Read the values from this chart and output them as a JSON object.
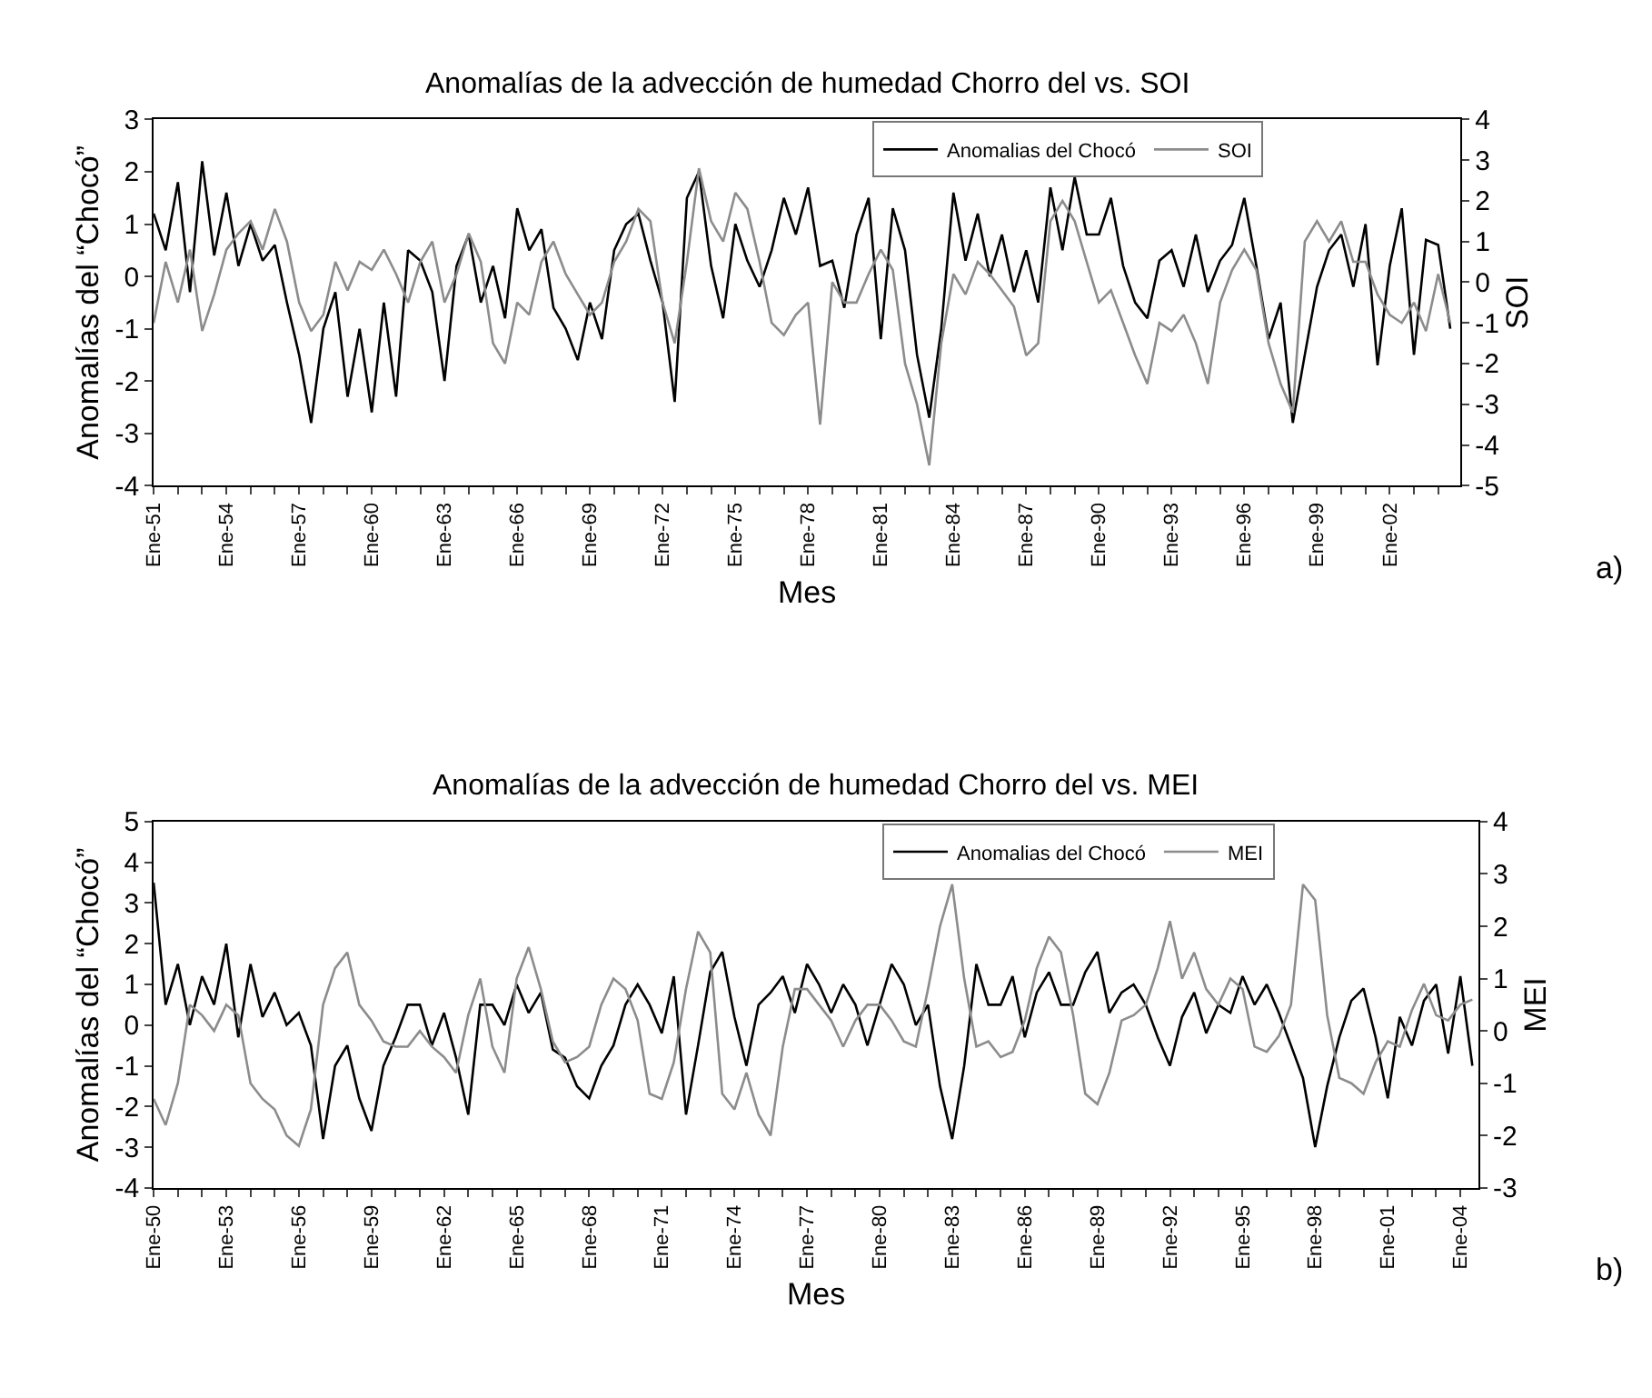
{
  "chart_data": [
    {
      "type": "line",
      "title": "Anomalías de la advección de humedad Chorro del vs. SOI",
      "xlabel": "Mes",
      "ylabel": "Anomalías del “Chocó”",
      "y2label": "SOI",
      "annotations": [
        "a)"
      ],
      "legend": "top right",
      "marker": "none",
      "line_style": "solid",
      "xlim": [
        "1951-01",
        "2004-12"
      ],
      "x": [
        "1951-01",
        "1951-07",
        "1952-01",
        "1952-07",
        "1953-01",
        "1953-07",
        "1954-01",
        "1954-07",
        "1955-01",
        "1955-07",
        "1956-01",
        "1956-07",
        "1957-01",
        "1957-07",
        "1958-01",
        "1958-07",
        "1959-01",
        "1959-07",
        "1960-01",
        "1960-07",
        "1961-01",
        "1961-07",
        "1962-01",
        "1962-07",
        "1963-01",
        "1963-07",
        "1964-01",
        "1964-07",
        "1965-01",
        "1965-07",
        "1966-01",
        "1966-07",
        "1967-01",
        "1967-07",
        "1968-01",
        "1968-07",
        "1969-01",
        "1969-07",
        "1970-01",
        "1970-07",
        "1971-01",
        "1971-07",
        "1972-01",
        "1972-07",
        "1973-01",
        "1973-07",
        "1974-01",
        "1974-07",
        "1975-01",
        "1975-07",
        "1976-01",
        "1976-07",
        "1977-01",
        "1977-07",
        "1978-01",
        "1978-07",
        "1979-01",
        "1979-07",
        "1980-01",
        "1980-07",
        "1981-01",
        "1981-07",
        "1982-01",
        "1982-07",
        "1983-01",
        "1983-07",
        "1984-01",
        "1984-07",
        "1985-01",
        "1985-07",
        "1986-01",
        "1986-07",
        "1987-01",
        "1987-07",
        "1988-01",
        "1988-07",
        "1989-01",
        "1989-07",
        "1990-01",
        "1990-07",
        "1991-01",
        "1991-07",
        "1992-01",
        "1992-07",
        "1993-01",
        "1993-07",
        "1994-01",
        "1994-07",
        "1995-01",
        "1995-07",
        "1996-01",
        "1996-07",
        "1997-01",
        "1997-07",
        "1998-01",
        "1998-07",
        "1999-01",
        "1999-07",
        "2000-01",
        "2000-07",
        "2001-01",
        "2001-07",
        "2002-01",
        "2002-07",
        "2003-01",
        "2003-07",
        "2004-01",
        "2004-07"
      ],
      "xticks": [
        {
          "value": "1951-01",
          "label": "Ene-51"
        },
        {
          "value": "1952-01",
          "label": null
        },
        {
          "value": "1953-01",
          "label": null
        },
        {
          "value": "1954-01",
          "label": "Ene-54"
        },
        {
          "value": "1955-01",
          "label": null
        },
        {
          "value": "1956-01",
          "label": null
        },
        {
          "value": "1957-01",
          "label": "Ene-57"
        },
        {
          "value": "1958-01",
          "label": null
        },
        {
          "value": "1959-01",
          "label": null
        },
        {
          "value": "1960-01",
          "label": "Ene-60"
        },
        {
          "value": "1961-01",
          "label": null
        },
        {
          "value": "1962-01",
          "label": null
        },
        {
          "value": "1963-01",
          "label": "Ene-63"
        },
        {
          "value": "1964-01",
          "label": null
        },
        {
          "value": "1965-01",
          "label": null
        },
        {
          "value": "1966-01",
          "label": "Ene-66"
        },
        {
          "value": "1967-01",
          "label": null
        },
        {
          "value": "1968-01",
          "label": null
        },
        {
          "value": "1969-01",
          "label": "Ene-69"
        },
        {
          "value": "1970-01",
          "label": null
        },
        {
          "value": "1971-01",
          "label": null
        },
        {
          "value": "1972-01",
          "label": "Ene-72"
        },
        {
          "value": "1973-01",
          "label": null
        },
        {
          "value": "1974-01",
          "label": null
        },
        {
          "value": "1975-01",
          "label": "Ene-75"
        },
        {
          "value": "1976-01",
          "label": null
        },
        {
          "value": "1977-01",
          "label": null
        },
        {
          "value": "1978-01",
          "label": "Ene-78"
        },
        {
          "value": "1979-01",
          "label": null
        },
        {
          "value": "1980-01",
          "label": null
        },
        {
          "value": "1981-01",
          "label": "Ene-81"
        },
        {
          "value": "1982-01",
          "label": null
        },
        {
          "value": "1983-01",
          "label": null
        },
        {
          "value": "1984-01",
          "label": "Ene-84"
        },
        {
          "value": "1985-01",
          "label": null
        },
        {
          "value": "1986-01",
          "label": null
        },
        {
          "value": "1987-01",
          "label": "Ene-87"
        },
        {
          "value": "1988-01",
          "label": null
        },
        {
          "value": "1989-01",
          "label": null
        },
        {
          "value": "1990-01",
          "label": "Ene-90"
        },
        {
          "value": "1991-01",
          "label": null
        },
        {
          "value": "1992-01",
          "label": null
        },
        {
          "value": "1993-01",
          "label": "Ene-93"
        },
        {
          "value": "1994-01",
          "label": null
        },
        {
          "value": "1995-01",
          "label": null
        },
        {
          "value": "1996-01",
          "label": "Ene-96"
        },
        {
          "value": "1997-01",
          "label": null
        },
        {
          "value": "1998-01",
          "label": null
        },
        {
          "value": "1999-01",
          "label": "Ene-99"
        },
        {
          "value": "2000-01",
          "label": null
        },
        {
          "value": "2001-01",
          "label": null
        },
        {
          "value": "2002-01",
          "label": "Ene-02"
        },
        {
          "value": "2003-01",
          "label": null
        },
        {
          "value": "2004-01",
          "label": null
        }
      ],
      "ylim": [
        -4,
        3
      ],
      "yticks": [
        -4,
        -3,
        -2,
        -1,
        0,
        1,
        2,
        3
      ],
      "y2lim": [
        -5,
        4
      ],
      "y2ticks": [
        -5,
        -4,
        -3,
        -2,
        -1,
        0,
        1,
        2,
        3,
        4
      ],
      "series": [
        {
          "name": "Anomalias del Chocó",
          "color": "#000000",
          "values": [
            1.2,
            0.5,
            1.8,
            -0.3,
            2.2,
            0.4,
            1.6,
            0.2,
            1.0,
            0.3,
            0.6,
            -0.5,
            -1.5,
            -2.8,
            -1.0,
            -0.3,
            -2.3,
            -1.0,
            -2.6,
            -0.5,
            -2.3,
            0.5,
            0.3,
            -0.3,
            -2.0,
            0.2,
            0.8,
            -0.5,
            0.2,
            -0.8,
            1.3,
            0.5,
            0.9,
            -0.6,
            -1.0,
            -1.6,
            -0.5,
            -1.2,
            0.5,
            1.0,
            1.2,
            0.3,
            -0.5,
            -2.4,
            1.5,
            2.0,
            0.2,
            -0.8,
            1.0,
            0.3,
            -0.2,
            0.5,
            1.5,
            0.8,
            1.7,
            0.2,
            0.3,
            -0.6,
            0.8,
            1.5,
            -1.2,
            1.3,
            0.5,
            -1.5,
            -2.7,
            -1.0,
            1.6,
            0.3,
            1.2,
            0.0,
            0.8,
            -0.3,
            0.5,
            -0.5,
            1.7,
            0.5,
            1.9,
            0.8,
            0.8,
            1.5,
            0.2,
            -0.5,
            -0.8,
            0.3,
            0.5,
            -0.2,
            0.8,
            -0.3,
            0.3,
            0.6,
            1.5,
            0.2,
            -1.2,
            -0.5,
            -2.8,
            -1.5,
            -0.2,
            0.5,
            0.8,
            -0.2,
            1.0,
            -1.7,
            0.2,
            1.3,
            -1.5,
            0.7,
            0.6,
            -1.0
          ]
        },
        {
          "name": "SOI",
          "color": "#8c8c8c",
          "axis": "y2",
          "values": [
            -1.0,
            0.5,
            -0.5,
            0.8,
            -1.2,
            -0.3,
            0.8,
            1.2,
            1.5,
            0.8,
            1.8,
            1.0,
            -0.5,
            -1.2,
            -0.8,
            0.5,
            -0.2,
            0.5,
            0.3,
            0.8,
            0.2,
            -0.5,
            0.5,
            1.0,
            -0.5,
            0.2,
            1.2,
            0.5,
            -1.5,
            -2.0,
            -0.5,
            -0.8,
            0.5,
            1.0,
            0.2,
            -0.3,
            -0.8,
            -0.5,
            0.5,
            1.0,
            1.8,
            1.5,
            -0.5,
            -1.5,
            0.5,
            2.8,
            1.5,
            1.0,
            2.2,
            1.8,
            0.5,
            -1.0,
            -1.3,
            -0.8,
            -0.5,
            -3.5,
            0.0,
            -0.5,
            -0.5,
            0.2,
            0.8,
            0.3,
            -2.0,
            -3.0,
            -4.5,
            -1.5,
            0.2,
            -0.3,
            0.5,
            0.2,
            -0.2,
            -0.6,
            -1.8,
            -1.5,
            1.5,
            2.0,
            1.5,
            0.5,
            -0.5,
            -0.2,
            -1.0,
            -1.8,
            -2.5,
            -1.0,
            -1.2,
            -0.8,
            -1.5,
            -2.5,
            -0.5,
            0.3,
            0.8,
            0.3,
            -1.5,
            -2.5,
            -3.2,
            1.0,
            1.5,
            1.0,
            1.5,
            0.5,
            0.5,
            -0.3,
            -0.8,
            -1.0,
            -0.5,
            -1.2,
            0.2,
            -1.0
          ]
        }
      ]
    },
    {
      "type": "line",
      "title": "Anomalías de la advección de humedad Chorro del vs. MEI",
      "xlabel": "Mes",
      "ylabel": "Anomalías del “Chocó”",
      "y2label": "MEI",
      "annotations": [
        "b)"
      ],
      "legend": "top right",
      "marker": "none",
      "line_style": "solid",
      "xlim": [
        "1950-01",
        "2004-10"
      ],
      "x": [
        "1950-01",
        "1950-07",
        "1951-01",
        "1951-07",
        "1952-01",
        "1952-07",
        "1953-01",
        "1953-07",
        "1954-01",
        "1954-07",
        "1955-01",
        "1955-07",
        "1956-01",
        "1956-07",
        "1957-01",
        "1957-07",
        "1958-01",
        "1958-07",
        "1959-01",
        "1959-07",
        "1960-01",
        "1960-07",
        "1961-01",
        "1961-07",
        "1962-01",
        "1962-07",
        "1963-01",
        "1963-07",
        "1964-01",
        "1964-07",
        "1965-01",
        "1965-07",
        "1966-01",
        "1966-07",
        "1967-01",
        "1967-07",
        "1968-01",
        "1968-07",
        "1969-01",
        "1969-07",
        "1970-01",
        "1970-07",
        "1971-01",
        "1971-07",
        "1972-01",
        "1972-07",
        "1973-01",
        "1973-07",
        "1974-01",
        "1974-07",
        "1975-01",
        "1975-07",
        "1976-01",
        "1976-07",
        "1977-01",
        "1977-07",
        "1978-01",
        "1978-07",
        "1979-01",
        "1979-07",
        "1980-01",
        "1980-07",
        "1981-01",
        "1981-07",
        "1982-01",
        "1982-07",
        "1983-01",
        "1983-07",
        "1984-01",
        "1984-07",
        "1985-01",
        "1985-07",
        "1986-01",
        "1986-07",
        "1987-01",
        "1987-07",
        "1988-01",
        "1988-07",
        "1989-01",
        "1989-07",
        "1990-01",
        "1990-07",
        "1991-01",
        "1991-07",
        "1992-01",
        "1992-07",
        "1993-01",
        "1993-07",
        "1994-01",
        "1994-07",
        "1995-01",
        "1995-07",
        "1996-01",
        "1996-07",
        "1997-01",
        "1997-07",
        "1998-01",
        "1998-07",
        "1999-01",
        "1999-07",
        "2000-01",
        "2000-07",
        "2001-01",
        "2001-07",
        "2002-01",
        "2002-07",
        "2003-01",
        "2003-07",
        "2004-01",
        "2004-07"
      ],
      "xticks": [
        {
          "value": "1950-01",
          "label": "Ene-50"
        },
        {
          "value": "1951-01",
          "label": null
        },
        {
          "value": "1952-01",
          "label": null
        },
        {
          "value": "1953-01",
          "label": "Ene-53"
        },
        {
          "value": "1954-01",
          "label": null
        },
        {
          "value": "1955-01",
          "label": null
        },
        {
          "value": "1956-01",
          "label": "Ene-56"
        },
        {
          "value": "1957-01",
          "label": null
        },
        {
          "value": "1958-01",
          "label": null
        },
        {
          "value": "1959-01",
          "label": "Ene-59"
        },
        {
          "value": "1960-01",
          "label": null
        },
        {
          "value": "1961-01",
          "label": null
        },
        {
          "value": "1962-01",
          "label": "Ene-62"
        },
        {
          "value": "1963-01",
          "label": null
        },
        {
          "value": "1964-01",
          "label": null
        },
        {
          "value": "1965-01",
          "label": "Ene-65"
        },
        {
          "value": "1966-01",
          "label": null
        },
        {
          "value": "1967-01",
          "label": null
        },
        {
          "value": "1968-01",
          "label": "Ene-68"
        },
        {
          "value": "1969-01",
          "label": null
        },
        {
          "value": "1970-01",
          "label": null
        },
        {
          "value": "1971-01",
          "label": "Ene-71"
        },
        {
          "value": "1972-01",
          "label": null
        },
        {
          "value": "1973-01",
          "label": null
        },
        {
          "value": "1974-01",
          "label": "Ene-74"
        },
        {
          "value": "1975-01",
          "label": null
        },
        {
          "value": "1976-01",
          "label": null
        },
        {
          "value": "1977-01",
          "label": "Ene-77"
        },
        {
          "value": "1978-01",
          "label": null
        },
        {
          "value": "1979-01",
          "label": null
        },
        {
          "value": "1980-01",
          "label": "Ene-80"
        },
        {
          "value": "1981-01",
          "label": null
        },
        {
          "value": "1982-01",
          "label": null
        },
        {
          "value": "1983-01",
          "label": "Ene-83"
        },
        {
          "value": "1984-01",
          "label": null
        },
        {
          "value": "1985-01",
          "label": null
        },
        {
          "value": "1986-01",
          "label": "Ene-86"
        },
        {
          "value": "1987-01",
          "label": null
        },
        {
          "value": "1988-01",
          "label": null
        },
        {
          "value": "1989-01",
          "label": "Ene-89"
        },
        {
          "value": "1990-01",
          "label": null
        },
        {
          "value": "1991-01",
          "label": null
        },
        {
          "value": "1992-01",
          "label": "Ene-92"
        },
        {
          "value": "1993-01",
          "label": null
        },
        {
          "value": "1994-01",
          "label": null
        },
        {
          "value": "1995-01",
          "label": "Ene-95"
        },
        {
          "value": "1996-01",
          "label": null
        },
        {
          "value": "1997-01",
          "label": null
        },
        {
          "value": "1998-01",
          "label": "Ene-98"
        },
        {
          "value": "1999-01",
          "label": null
        },
        {
          "value": "2000-01",
          "label": null
        },
        {
          "value": "2001-01",
          "label": "Ene-01"
        },
        {
          "value": "2002-01",
          "label": null
        },
        {
          "value": "2003-01",
          "label": null
        },
        {
          "value": "2004-01",
          "label": "Ene-04"
        }
      ],
      "ylim": [
        -4,
        5
      ],
      "yticks": [
        -4,
        -3,
        -2,
        -1,
        0,
        1,
        2,
        3,
        4,
        5
      ],
      "y2lim": [
        -3,
        4
      ],
      "y2ticks": [
        -3,
        -2,
        -1,
        0,
        1,
        2,
        3,
        4
      ],
      "series": [
        {
          "name": "Anomalias del Chocó",
          "color": "#000000",
          "values": [
            3.5,
            0.5,
            1.5,
            0.0,
            1.2,
            0.5,
            2.0,
            -0.3,
            1.5,
            0.2,
            0.8,
            0.0,
            0.3,
            -0.5,
            -2.8,
            -1.0,
            -0.5,
            -1.8,
            -2.6,
            -1.0,
            -0.3,
            0.5,
            0.5,
            -0.5,
            0.3,
            -0.8,
            -2.2,
            0.5,
            0.5,
            0.0,
            1.0,
            0.3,
            0.8,
            -0.6,
            -0.8,
            -1.5,
            -1.8,
            -1.0,
            -0.5,
            0.5,
            1.0,
            0.5,
            -0.2,
            1.2,
            -2.2,
            -0.5,
            1.3,
            1.8,
            0.2,
            -1.0,
            0.5,
            0.8,
            1.2,
            0.3,
            1.5,
            1.0,
            0.3,
            1.0,
            0.5,
            -0.5,
            0.5,
            1.5,
            1.0,
            0.0,
            0.5,
            -1.5,
            -2.8,
            -1.0,
            1.5,
            0.5,
            0.5,
            1.2,
            -0.3,
            0.8,
            1.3,
            0.5,
            0.5,
            1.3,
            1.8,
            0.3,
            0.8,
            1.0,
            0.5,
            -0.3,
            -1.0,
            0.2,
            0.8,
            -0.2,
            0.5,
            0.3,
            1.2,
            0.5,
            1.0,
            0.3,
            -0.5,
            -1.3,
            -3.0,
            -1.5,
            -0.3,
            0.6,
            0.9,
            -0.3,
            -1.8,
            0.2,
            -0.5,
            0.6,
            1.0,
            -0.7,
            1.2,
            -1.0
          ]
        },
        {
          "name": "MEI",
          "color": "#8c8c8c",
          "axis": "y2",
          "values": [
            -1.3,
            -1.8,
            -1.0,
            0.5,
            0.3,
            0.0,
            0.5,
            0.3,
            -1.0,
            -1.3,
            -1.5,
            -2.0,
            -2.2,
            -1.5,
            0.5,
            1.2,
            1.5,
            0.5,
            0.2,
            -0.2,
            -0.3,
            -0.3,
            0.0,
            -0.3,
            -0.5,
            -0.8,
            0.3,
            1.0,
            -0.3,
            -0.8,
            1.0,
            1.6,
            0.8,
            -0.2,
            -0.6,
            -0.5,
            -0.3,
            0.5,
            1.0,
            0.8,
            0.2,
            -1.2,
            -1.3,
            -0.6,
            0.8,
            1.9,
            1.5,
            -1.2,
            -1.5,
            -0.8,
            -1.6,
            -2.0,
            -0.3,
            0.8,
            0.8,
            0.5,
            0.2,
            -0.3,
            0.2,
            0.5,
            0.5,
            0.2,
            -0.2,
            -0.3,
            0.8,
            2.0,
            2.8,
            1.0,
            -0.3,
            -0.2,
            -0.5,
            -0.4,
            0.2,
            1.2,
            1.8,
            1.5,
            0.3,
            -1.2,
            -1.4,
            -0.8,
            0.2,
            0.3,
            0.5,
            1.2,
            2.1,
            1.0,
            1.5,
            0.8,
            0.5,
            1.0,
            0.8,
            -0.3,
            -0.4,
            -0.1,
            0.5,
            2.8,
            2.5,
            0.3,
            -0.9,
            -1.0,
            -1.2,
            -0.6,
            -0.2,
            -0.3,
            0.4,
            0.9,
            0.3,
            0.2,
            0.5,
            0.6
          ]
        }
      ]
    }
  ]
}
